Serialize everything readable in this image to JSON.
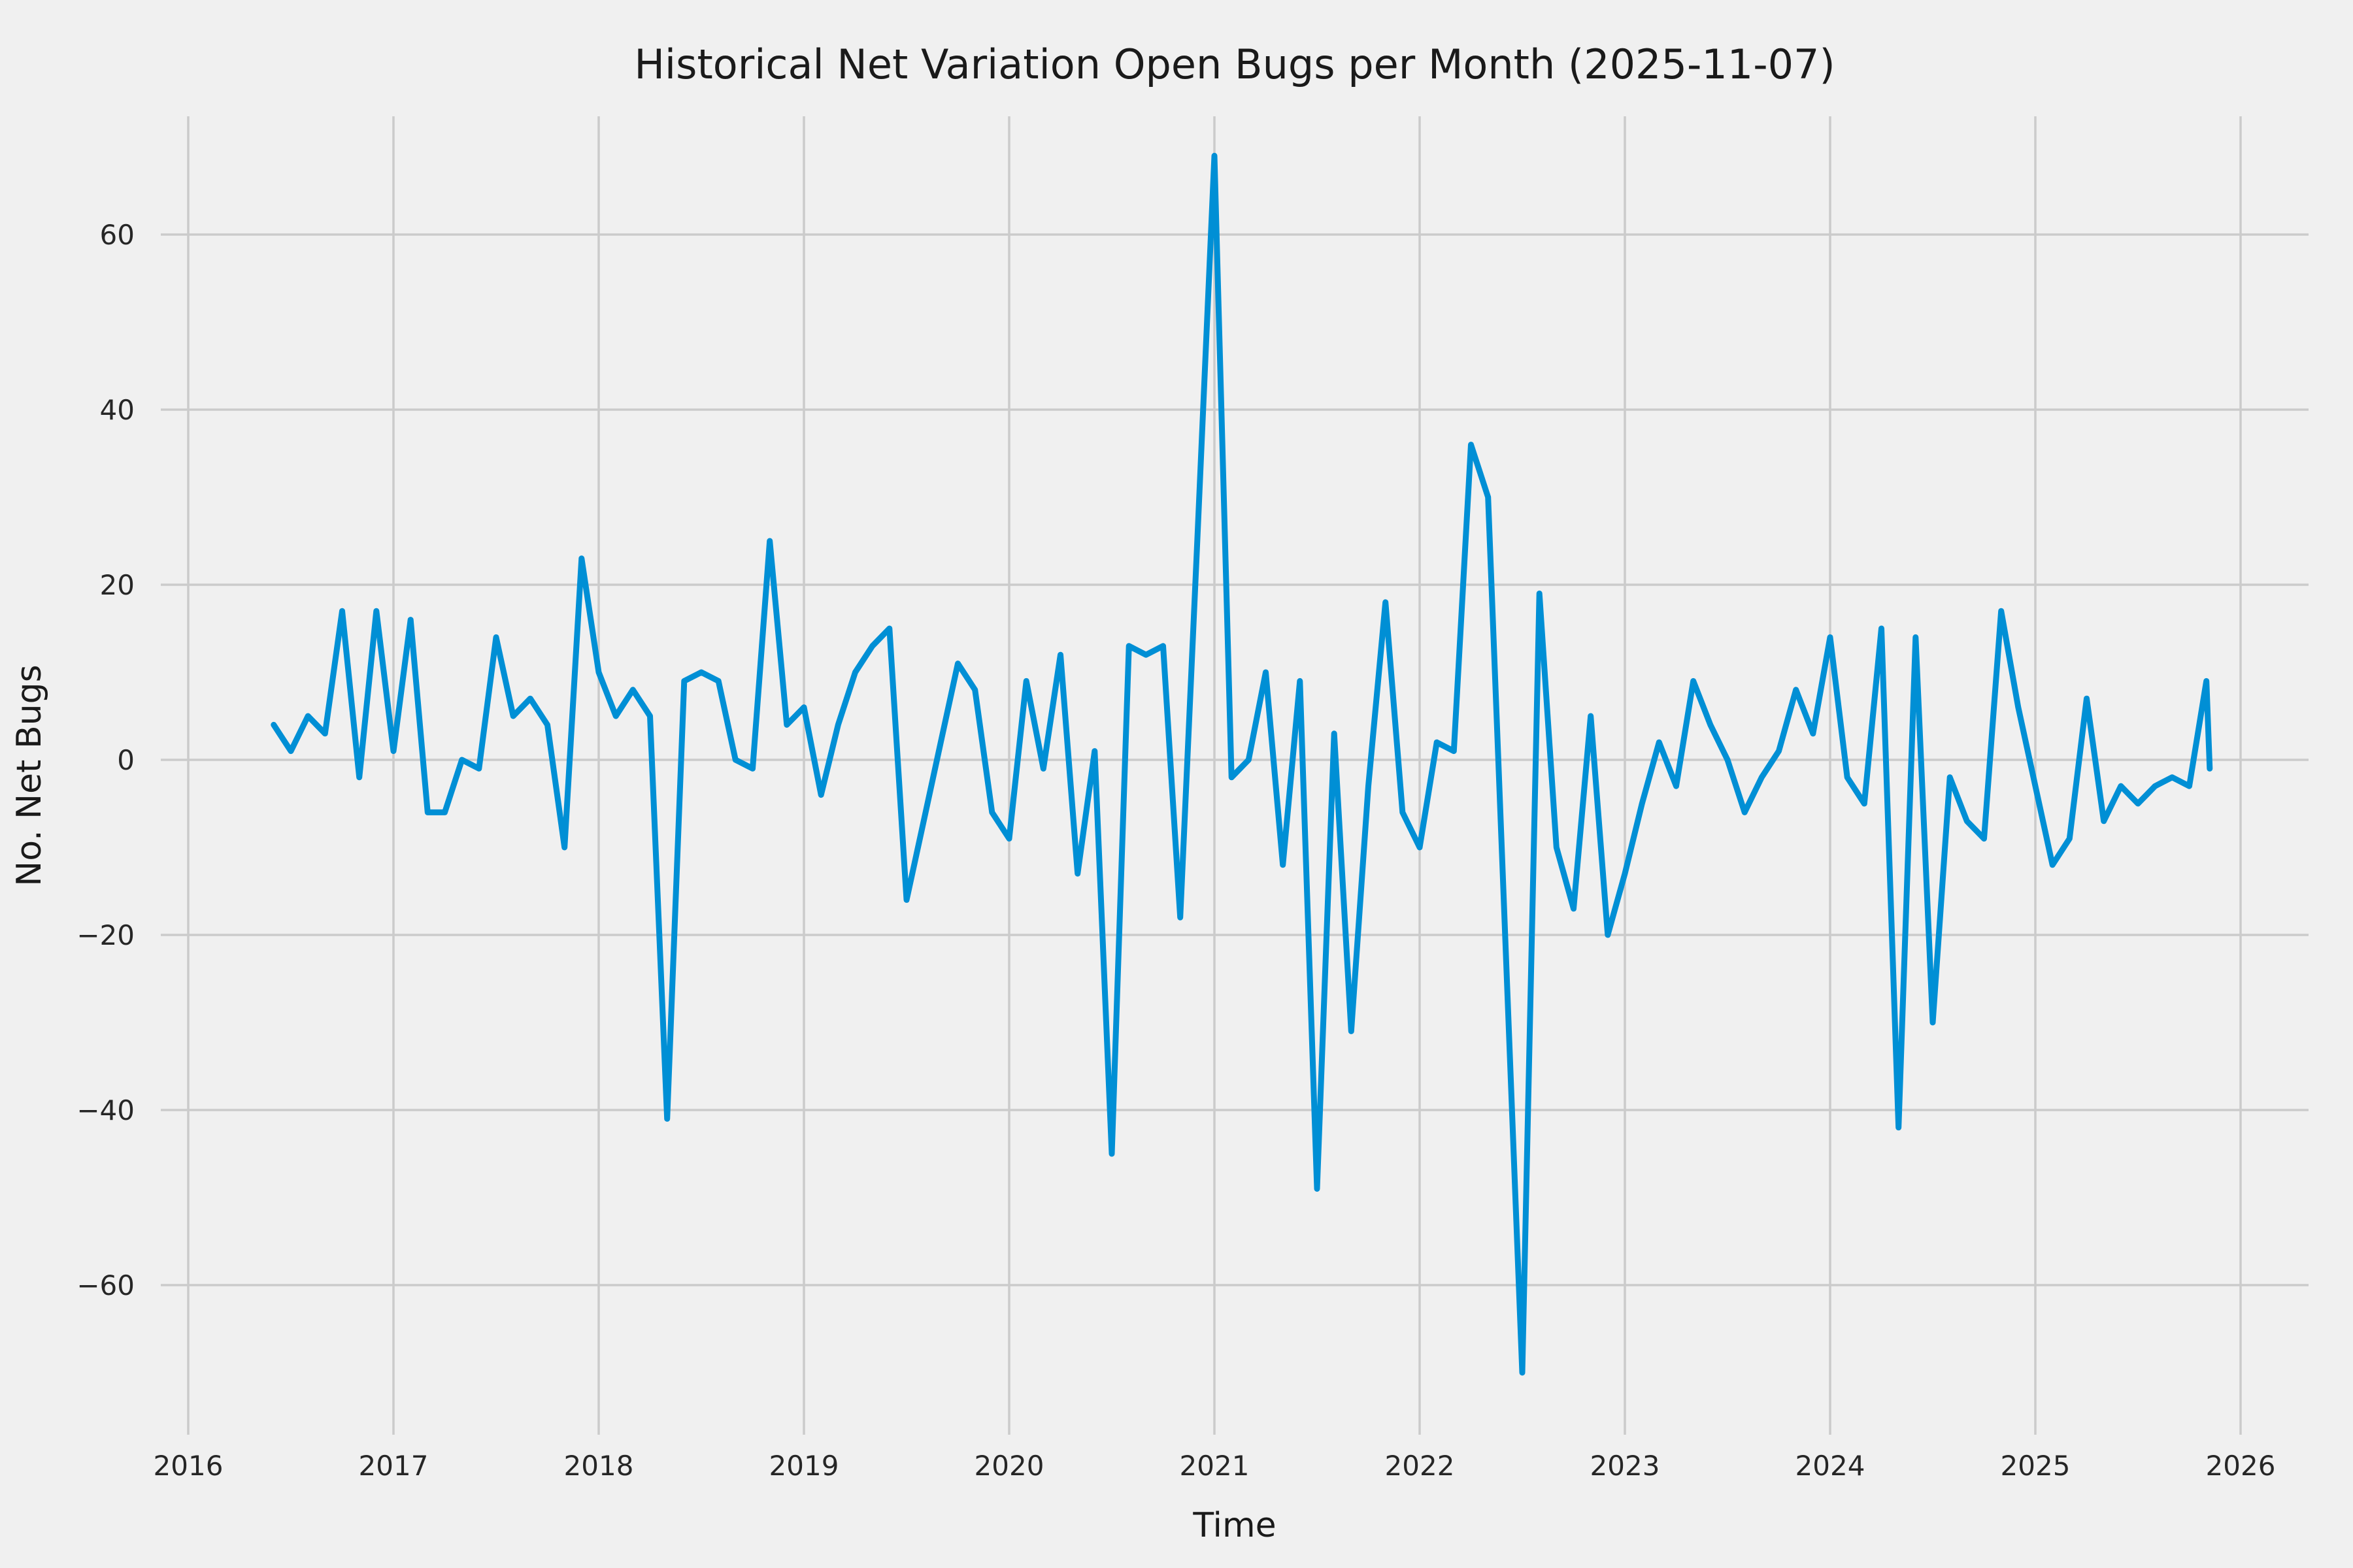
{
  "chart_data": {
    "type": "line",
    "title": "Historical Net Variation Open Bugs per Month (2025-11-07)",
    "xlabel": "Time",
    "ylabel": "No. Net Bugs",
    "legend": "none",
    "grid": "on",
    "line_color": "#008fd5",
    "background_color": "#f0f0f0",
    "grid_color": "#cbcbcb",
    "text_color": "#262626",
    "ylim": [
      -76,
      75
    ],
    "xlim_years": [
      2015.79,
      2026.33
    ],
    "yticks": [
      60,
      40,
      20,
      0,
      -20,
      -40,
      -60
    ],
    "ytick_labels": [
      "60",
      "40",
      "20",
      "0",
      "−20",
      "−40",
      "−60"
    ],
    "xticks": [
      2016,
      2017,
      2018,
      2019,
      2020,
      2021,
      2022,
      2023,
      2024,
      2025,
      2026
    ],
    "xtick_labels": [
      "2016",
      "2017",
      "2018",
      "2019",
      "2020",
      "2021",
      "2022",
      "2023",
      "2024",
      "2025",
      "2026"
    ],
    "x": [
      "2016-06",
      "2016-07",
      "2016-08",
      "2016-09",
      "2016-10",
      "2016-11",
      "2016-12",
      "2017-01",
      "2017-02",
      "2017-03",
      "2017-04",
      "2017-05",
      "2017-06",
      "2017-07",
      "2017-08",
      "2017-09",
      "2017-10",
      "2017-11",
      "2017-12",
      "2018-01",
      "2018-02",
      "2018-03",
      "2018-04",
      "2018-05",
      "2018-06",
      "2018-07",
      "2018-08",
      "2018-09",
      "2018-10",
      "2018-11",
      "2018-12",
      "2019-01",
      "2019-02",
      "2019-03",
      "2019-04",
      "2019-05",
      "2019-06",
      "2019-07",
      "2019-08",
      "2019-09",
      "2019-10",
      "2019-11",
      "2019-12",
      "2020-01",
      "2020-02",
      "2020-03",
      "2020-04",
      "2020-05",
      "2020-06",
      "2020-07",
      "2020-08",
      "2020-09",
      "2020-10",
      "2020-11",
      "2020-12",
      "2021-01",
      "2021-02",
      "2021-03",
      "2021-04",
      "2021-05",
      "2021-06",
      "2021-07",
      "2021-08",
      "2021-09",
      "2021-10",
      "2021-11",
      "2021-12",
      "2022-01",
      "2022-02",
      "2022-03",
      "2022-04",
      "2022-05",
      "2022-06",
      "2022-07",
      "2022-08",
      "2022-09",
      "2022-10",
      "2022-11",
      "2022-12",
      "2023-01",
      "2023-02",
      "2023-03",
      "2023-04",
      "2023-05",
      "2023-06",
      "2023-07",
      "2023-08",
      "2023-09",
      "2023-10",
      "2023-11",
      "2023-12",
      "2024-01",
      "2024-02",
      "2024-03",
      "2024-04",
      "2024-05",
      "2024-06",
      "2024-07",
      "2024-08",
      "2024-09",
      "2024-10",
      "2024-11",
      "2024-12",
      "2025-01",
      "2025-02",
      "2025-03",
      "2025-04",
      "2025-05",
      "2025-06",
      "2025-07",
      "2025-08",
      "2025-09",
      "2025-10",
      "2025-11",
      "2025-11-07"
    ],
    "values": [
      4,
      1,
      5,
      3,
      17,
      -2,
      17,
      1,
      16,
      -6,
      -6,
      0,
      -1,
      14,
      5,
      7,
      4,
      -10,
      23,
      10,
      5,
      8,
      5,
      -41,
      9,
      10,
      9,
      0,
      -1,
      25,
      4,
      6,
      -4,
      4,
      10,
      13,
      15,
      -16,
      -7,
      2,
      11,
      8,
      -6,
      -9,
      9,
      -1,
      12,
      -13,
      1,
      -45,
      13,
      12,
      13,
      -18,
      25,
      69,
      -2,
      0,
      10,
      -12,
      9,
      -49,
      3,
      -31,
      -3,
      18,
      -6,
      -10,
      2,
      1,
      36,
      30,
      -20,
      -70,
      19,
      -10,
      -17,
      5,
      -20,
      -13,
      -5,
      2,
      -3,
      9,
      4,
      0,
      -6,
      -2,
      1,
      8,
      3,
      14,
      -2,
      -5,
      15,
      -42,
      14,
      -30,
      -2,
      -7,
      -9,
      17,
      6,
      -3,
      -12,
      -9,
      7,
      -7,
      -3,
      -5,
      -3,
      -2,
      -3,
      9,
      -1
    ]
  }
}
